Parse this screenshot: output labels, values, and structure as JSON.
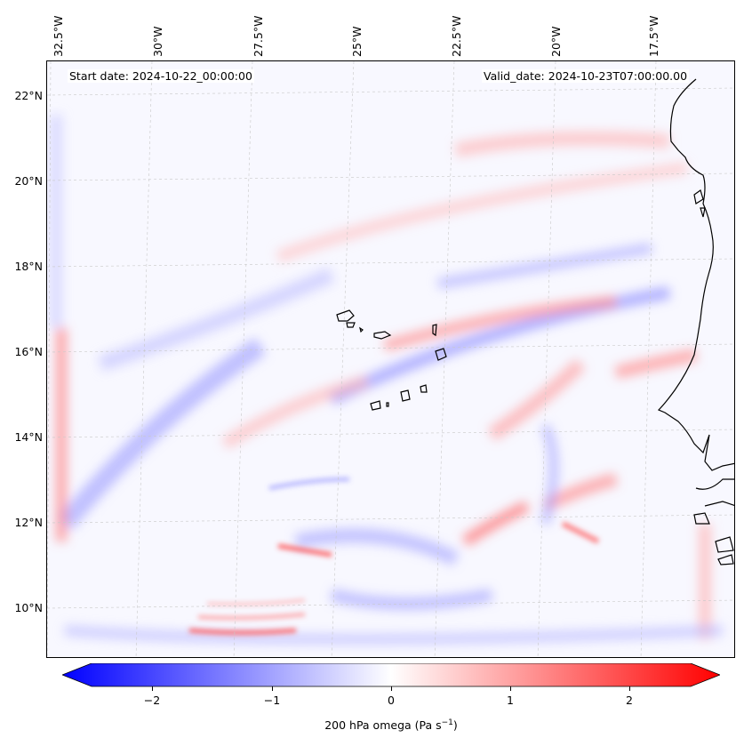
{
  "header": {
    "start_date": "Start date: 2024-10-22_00:00:00",
    "valid_date": "Valid_date: 2024-10-23T07:00:00.00"
  },
  "longitude_labels": [
    "32.5°W",
    "30°W",
    "27.5°W",
    "25°W",
    "22.5°W",
    "20°W",
    "17.5°W"
  ],
  "latitude_labels": [
    "22°N",
    "20°N",
    "18°N",
    "16°N",
    "14°N",
    "12°N",
    "10°N"
  ],
  "colorbar": {
    "ticks": [
      "−2",
      "−1",
      "0",
      "1",
      "2"
    ],
    "label_main": "200 hPa omega (Pa s",
    "label_sup": "−1",
    "label_end": ")",
    "low_color": "#0000ff",
    "mid_color": "#ffffff",
    "high_color": "#ff0000"
  },
  "map": {
    "background_color": "#f8f8ff",
    "coast_color": "#000000"
  }
}
